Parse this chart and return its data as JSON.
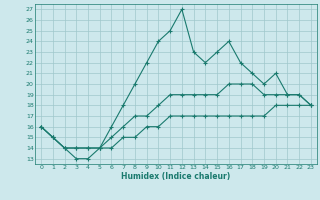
{
  "xlabel": "Humidex (Indice chaleur)",
  "ylabel": "",
  "bg_color": "#cde8ec",
  "grid_color": "#a0c8cc",
  "line_color": "#1a7a6e",
  "x_values": [
    0,
    1,
    2,
    3,
    4,
    5,
    6,
    7,
    8,
    9,
    10,
    11,
    12,
    13,
    14,
    15,
    16,
    17,
    18,
    19,
    20,
    21,
    22,
    23
  ],
  "line1": [
    16,
    15,
    14,
    13,
    13,
    14,
    16,
    18,
    20,
    22,
    24,
    25,
    27,
    23,
    22,
    23,
    24,
    22,
    21,
    20,
    21,
    19,
    19,
    18
  ],
  "line2": [
    16,
    15,
    14,
    14,
    14,
    14,
    15,
    16,
    17,
    17,
    18,
    19,
    19,
    19,
    19,
    19,
    20,
    20,
    20,
    19,
    19,
    19,
    19,
    18
  ],
  "line3": [
    16,
    15,
    14,
    14,
    14,
    14,
    14,
    15,
    15,
    16,
    16,
    17,
    17,
    17,
    17,
    17,
    17,
    17,
    17,
    17,
    18,
    18,
    18,
    18
  ],
  "xlim": [
    -0.5,
    23.5
  ],
  "ylim": [
    12.5,
    27.5
  ],
  "yticks": [
    13,
    14,
    15,
    16,
    17,
    18,
    19,
    20,
    21,
    22,
    23,
    24,
    25,
    26,
    27
  ],
  "xticks": [
    0,
    1,
    2,
    3,
    4,
    5,
    6,
    7,
    8,
    9,
    10,
    11,
    12,
    13,
    14,
    15,
    16,
    17,
    18,
    19,
    20,
    21,
    22,
    23
  ]
}
